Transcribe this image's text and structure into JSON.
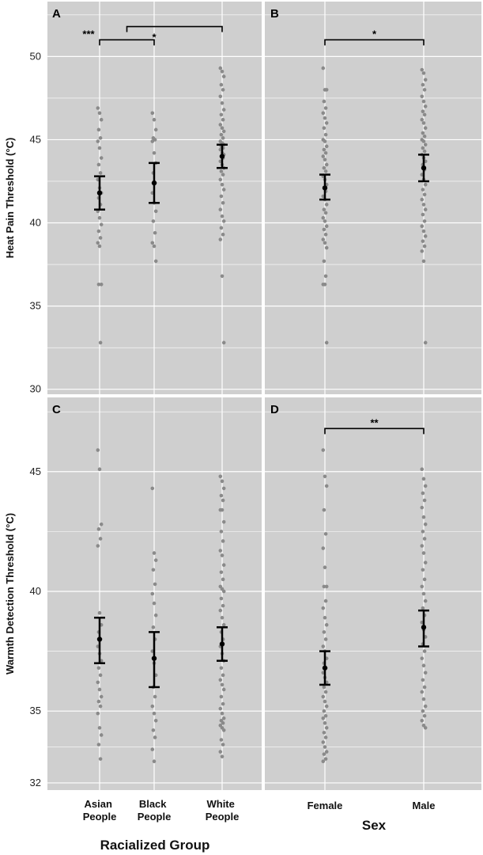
{
  "colors": {
    "panel_bg": "#cfcfcf",
    "grid": "#ffffff",
    "point": "#8a8a8a",
    "bar": "#000000"
  },
  "chart_data": [
    {
      "type": "scatter",
      "panel_label": "A",
      "ylabel": "Heat Pain Threshold (°C)",
      "yticks": [
        "30",
        "35",
        "40",
        "45",
        "50"
      ],
      "ylim": [
        29.7,
        53.3
      ],
      "categories": [
        "Asian People",
        "Black People",
        "White People"
      ],
      "means": [
        41.8,
        42.4,
        44.0
      ],
      "ci_low": [
        40.8,
        41.2,
        43.3
      ],
      "ci_high": [
        42.8,
        43.6,
        44.7
      ],
      "points": [
        [
          46.9,
          46.6,
          46.2,
          45.6,
          45.1,
          44.9,
          44.5,
          43.9,
          43.5,
          43.0,
          42.6,
          42.1,
          41.8,
          41.5,
          41.1,
          40.7,
          40.3,
          39.9,
          39.5,
          39.1,
          38.8,
          38.6,
          36.3,
          36.3,
          32.8
        ],
        [
          46.6,
          46.2,
          45.6,
          45.1,
          45.0,
          44.9,
          44.2,
          43.6,
          43.0,
          42.4,
          41.8,
          41.2,
          40.7,
          40.1,
          39.4,
          38.8,
          38.6,
          37.7
        ],
        [
          49.3,
          49.1,
          48.8,
          48.3,
          48.0,
          47.6,
          47.2,
          46.8,
          46.5,
          46.2,
          45.9,
          45.7,
          45.5,
          45.3,
          45.1,
          44.9,
          44.8,
          44.7,
          44.6,
          44.5,
          44.4,
          44.2,
          44.1,
          44.0,
          43.9,
          43.7,
          43.5,
          43.3,
          43.1,
          42.9,
          42.6,
          42.3,
          42.0,
          41.6,
          41.2,
          40.8,
          40.4,
          40.1,
          39.7,
          39.3,
          39.0,
          36.8,
          32.8
        ]
      ],
      "annotations": [
        {
          "label": "***",
          "from": 0,
          "to": 1,
          "level": 51.0
        },
        {
          "label": "*",
          "from": 1,
          "to": 1,
          "level": 51.0
        },
        {
          "label": "",
          "from": 0.5,
          "to": 2,
          "level": 51.8
        }
      ]
    },
    {
      "type": "scatter",
      "panel_label": "B",
      "yticks": [
        "30",
        "35",
        "40",
        "45",
        "50"
      ],
      "ylim": [
        29.7,
        53.3
      ],
      "categories": [
        "Female",
        "Male"
      ],
      "means": [
        42.1,
        43.3
      ],
      "ci_low": [
        41.4,
        42.5
      ],
      "ci_high": [
        42.9,
        44.1
      ],
      "points": [
        [
          49.3,
          48.0,
          48.0,
          47.3,
          46.9,
          46.6,
          46.3,
          46.0,
          45.7,
          45.3,
          45.0,
          44.9,
          44.6,
          44.4,
          44.2,
          44.0,
          43.8,
          43.5,
          43.3,
          43.1,
          42.8,
          42.6,
          42.3,
          42.1,
          41.9,
          41.6,
          41.4,
          41.1,
          40.8,
          40.6,
          40.3,
          40.1,
          39.8,
          39.6,
          39.3,
          39.0,
          38.8,
          38.5,
          37.7,
          36.8,
          36.3,
          36.3,
          32.8
        ],
        [
          49.2,
          49.0,
          48.6,
          48.3,
          48.0,
          47.6,
          47.3,
          47.0,
          46.7,
          46.5,
          46.2,
          46.0,
          45.7,
          45.4,
          45.2,
          45.0,
          44.9,
          44.7,
          44.5,
          44.3,
          44.1,
          43.9,
          43.7,
          43.5,
          43.2,
          42.9,
          42.6,
          42.3,
          42.0,
          41.7,
          41.4,
          41.1,
          40.8,
          40.5,
          40.1,
          39.8,
          39.5,
          39.2,
          38.9,
          38.6,
          38.3,
          37.7,
          32.8
        ]
      ],
      "annotations": [
        {
          "label": "*",
          "from": 0,
          "to": 1,
          "level": 51.0
        }
      ]
    },
    {
      "type": "scatter",
      "panel_label": "C",
      "ylabel": "Warmth Detection Threshold (°C)",
      "yticks": [
        "32",
        "35",
        "40",
        "45"
      ],
      "ylim": [
        31.7,
        48.1
      ],
      "categories": [
        "Asian People",
        "Black People",
        "White People"
      ],
      "means": [
        38.0,
        37.2,
        37.8
      ],
      "ci_low": [
        37.0,
        36.0,
        37.1
      ],
      "ci_high": [
        38.9,
        38.3,
        38.5
      ],
      "points": [
        [
          45.9,
          45.1,
          42.8,
          42.6,
          42.2,
          41.9,
          39.1,
          38.6,
          38.3,
          38.0,
          37.7,
          37.4,
          37.1,
          36.8,
          36.5,
          36.2,
          35.9,
          35.6,
          35.4,
          35.2,
          34.9,
          34.3,
          34.0,
          33.6,
          33.0
        ],
        [
          44.3,
          41.6,
          41.3,
          40.9,
          40.3,
          39.9,
          39.5,
          39.0,
          38.5,
          38.0,
          37.5,
          37.0,
          36.5,
          36.0,
          35.6,
          35.2,
          34.9,
          34.6,
          34.2,
          33.9,
          33.4,
          32.9
        ],
        [
          44.8,
          44.6,
          44.3,
          44.0,
          43.8,
          43.4,
          43.4,
          42.9,
          42.5,
          42.1,
          41.7,
          41.5,
          41.1,
          40.8,
          40.5,
          40.2,
          40.1,
          40.0,
          39.7,
          39.4,
          39.2,
          38.9,
          38.6,
          38.3,
          38.0,
          37.7,
          37.4,
          37.1,
          36.8,
          36.5,
          36.3,
          36.1,
          35.9,
          35.6,
          35.3,
          35.1,
          34.9,
          34.7,
          34.6,
          34.5,
          34.4,
          34.3,
          34.2,
          33.8,
          33.6,
          33.3,
          33.1
        ]
      ],
      "annotations": []
    },
    {
      "type": "scatter",
      "panel_label": "D",
      "yticks": [
        "32",
        "35",
        "40",
        "45"
      ],
      "ylim": [
        31.7,
        48.1
      ],
      "categories": [
        "Female",
        "Male"
      ],
      "means": [
        36.8,
        38.5
      ],
      "ci_low": [
        36.1,
        37.7
      ],
      "ci_high": [
        37.5,
        39.2
      ],
      "points": [
        [
          45.9,
          44.8,
          44.4,
          43.4,
          42.4,
          41.8,
          41.0,
          40.2,
          40.2,
          39.6,
          39.3,
          38.9,
          38.6,
          38.3,
          38.0,
          37.7,
          37.5,
          37.2,
          37.0,
          36.8,
          36.6,
          36.4,
          36.2,
          36.0,
          35.8,
          35.6,
          35.4,
          35.2,
          35.0,
          34.8,
          34.7,
          34.5,
          34.3,
          34.1,
          33.9,
          33.7,
          33.5,
          33.3,
          33.2,
          33.0,
          32.9
        ],
        [
          45.1,
          44.7,
          44.4,
          44.1,
          43.8,
          43.5,
          43.1,
          42.8,
          42.5,
          42.2,
          41.9,
          41.6,
          41.2,
          40.9,
          40.5,
          40.2,
          39.9,
          39.6,
          39.3,
          39.0,
          38.7,
          38.4,
          38.1,
          37.8,
          37.5,
          37.2,
          36.9,
          36.6,
          36.3,
          36.0,
          35.8,
          35.5,
          35.2,
          35.0,
          34.8,
          34.6,
          34.4,
          34.3
        ]
      ],
      "annotations": [
        {
          "label": "**",
          "from": 0,
          "to": 1,
          "level": 46.8
        }
      ]
    }
  ],
  "x_axis_titles": {
    "left": "Racialized Group",
    "right": "Sex"
  }
}
